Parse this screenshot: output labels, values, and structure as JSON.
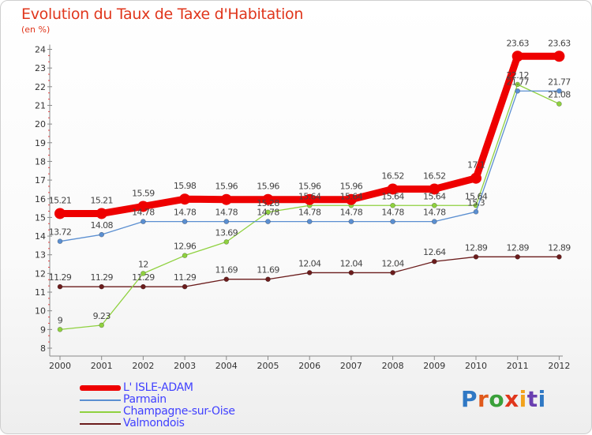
{
  "title": "Evolution du Taux de Taxe d'Habitation",
  "subtitle": "(en %)",
  "brand": {
    "text": "Proxiti",
    "letter_colors": [
      "#2f78c4",
      "#e05a1c",
      "#3aa03a",
      "#e0361c",
      "#f2a21c",
      "#6a3fb0",
      "#2f78c4"
    ]
  },
  "chart_data": {
    "type": "line",
    "x": [
      "2000",
      "2001",
      "2002",
      "2003",
      "2004",
      "2005",
      "2006",
      "2007",
      "2008",
      "2009",
      "2010",
      "2011",
      "2012"
    ],
    "ylim": [
      8,
      24
    ],
    "yticks": [
      8,
      9,
      10,
      11,
      12,
      13,
      14,
      15,
      16,
      17,
      18,
      19,
      20,
      21,
      22,
      23,
      24
    ],
    "grid": false,
    "legend_position": "bottom-left",
    "series": [
      {
        "name": "L' ISLE-ADAM",
        "color": "#ee0000",
        "values": [
          15.21,
          15.21,
          15.59,
          15.98,
          15.96,
          15.96,
          15.96,
          15.96,
          16.52,
          16.52,
          17.1,
          23.63,
          23.63
        ],
        "labels": [
          "15.21",
          "15.21",
          "15.59",
          "15.98",
          "15.96",
          "15.96",
          "15.96",
          "15.96",
          "16.52",
          "16.52",
          "17.1",
          "23.63",
          "23.63"
        ]
      },
      {
        "name": "Parmain",
        "color": "#5b8fd1",
        "values": [
          13.72,
          14.08,
          14.78,
          14.78,
          14.78,
          14.78,
          14.78,
          14.78,
          14.78,
          14.78,
          15.3,
          21.77,
          21.77
        ],
        "labels": [
          "13.72",
          "14.08",
          "14.78",
          "14.78",
          "14.78",
          "14.78",
          "14.78",
          "14.78",
          "14.78",
          "14.78",
          "15.3",
          "21.77",
          "21.77"
        ]
      },
      {
        "name": "Champagne-sur-Oise",
        "color": "#8fd13f",
        "values": [
          9,
          9.23,
          12,
          12.96,
          13.69,
          15.28,
          15.64,
          15.64,
          15.64,
          15.64,
          15.64,
          22.12,
          21.08
        ],
        "labels": [
          "9",
          "9.23",
          "12",
          "12.96",
          "13.69",
          "15.28",
          "15.64",
          "15.64",
          "15.64",
          "15.64",
          "15.64",
          "22.12",
          "21.08"
        ]
      },
      {
        "name": "Valmondois",
        "color": "#6b1c1c",
        "values": [
          11.29,
          11.29,
          11.29,
          11.29,
          11.69,
          11.69,
          12.04,
          12.04,
          12.04,
          12.64,
          12.89,
          12.89,
          12.89
        ],
        "labels": [
          "11.29",
          "11.29",
          "11.29",
          "11.29",
          "11.69",
          "11.69",
          "12.04",
          "12.04",
          "12.04",
          "12.64",
          "12.89",
          "12.89",
          "12.89"
        ]
      }
    ]
  }
}
